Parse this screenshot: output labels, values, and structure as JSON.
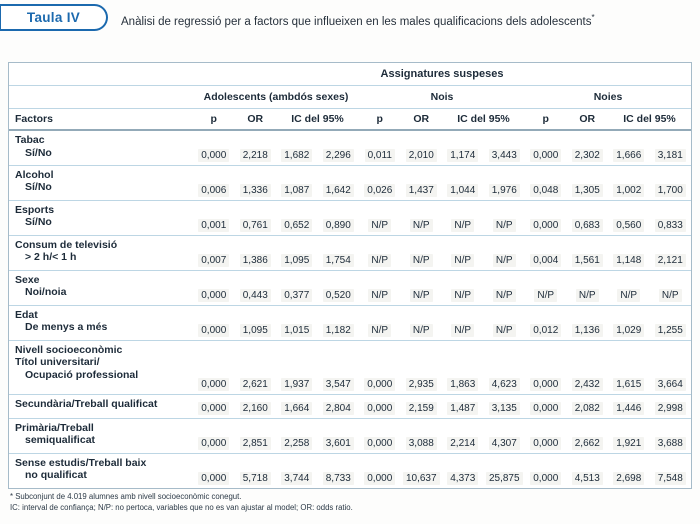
{
  "colors": {
    "accent_blue": "#1b69ae",
    "text_dark": "#1d2b39",
    "line_light": "#bdd6e4",
    "line_dark": "#93aab8",
    "table_border": "#a6bbc9"
  },
  "header": {
    "badge": "Taula IV",
    "title": "Anàlisi de regressió per a factors que influeixen en les males qualificacions dels adolescents",
    "title_asterisk": "*"
  },
  "table": {
    "span_header": "Assignatures suspeses",
    "groups": [
      "Adolescents (ambdós sexes)",
      "Nois",
      "Noies"
    ],
    "factors_header": "Factors",
    "col_headers": [
      "p",
      "OR",
      "IC del 95%"
    ],
    "rows": [
      {
        "lines": [
          "Tabac",
          "Sí/No"
        ],
        "indents": [
          0,
          1
        ],
        "values": [
          "0,000",
          "2,218",
          "1,682",
          "2,296",
          "0,011",
          "2,010",
          "1,174",
          "3,443",
          "0,000",
          "2,302",
          "1,666",
          "3,181"
        ]
      },
      {
        "lines": [
          "Alcohol",
          "Sí/No"
        ],
        "indents": [
          0,
          1
        ],
        "values": [
          "0,006",
          "1,336",
          "1,087",
          "1,642",
          "0,026",
          "1,437",
          "1,044",
          "1,976",
          "0,048",
          "1,305",
          "1,002",
          "1,700"
        ]
      },
      {
        "lines": [
          "Esports",
          "Sí/No"
        ],
        "indents": [
          0,
          1
        ],
        "values": [
          "0,001",
          "0,761",
          "0,652",
          "0,890",
          "N/P",
          "N/P",
          "N/P",
          "N/P",
          "0,000",
          "0,683",
          "0,560",
          "0,833"
        ]
      },
      {
        "lines": [
          "Consum de televisió",
          "> 2 h/< 1 h"
        ],
        "indents": [
          0,
          1
        ],
        "values": [
          "0,007",
          "1,386",
          "1,095",
          "1,754",
          "N/P",
          "N/P",
          "N/P",
          "N/P",
          "0,004",
          "1,561",
          "1,148",
          "2,121"
        ]
      },
      {
        "lines": [
          "Sexe",
          "Noi/noia"
        ],
        "indents": [
          0,
          1
        ],
        "values": [
          "0,000",
          "0,443",
          "0,377",
          "0,520",
          "N/P",
          "N/P",
          "N/P",
          "N/P",
          "N/P",
          "N/P",
          "N/P",
          "N/P"
        ]
      },
      {
        "lines": [
          "Edat",
          "De menys a més"
        ],
        "indents": [
          0,
          1
        ],
        "values": [
          "0,000",
          "1,095",
          "1,015",
          "1,182",
          "N/P",
          "N/P",
          "N/P",
          "N/P",
          "0,012",
          "1,136",
          "1,029",
          "1,255"
        ]
      },
      {
        "lines": [
          "Nivell socioeconòmic",
          "Títol universitari/",
          "Ocupació professional"
        ],
        "indents": [
          0,
          0,
          1
        ],
        "values": [
          "0,000",
          "2,621",
          "1,937",
          "3,547",
          "0,000",
          "2,935",
          "1,863",
          "4,623",
          "0,000",
          "2,432",
          "1,615",
          "3,664"
        ]
      },
      {
        "lines": [
          "Secundària/Treball qualificat"
        ],
        "indents": [
          0
        ],
        "values": [
          "0,000",
          "2,160",
          "1,664",
          "2,804",
          "0,000",
          "2,159",
          "1,487",
          "3,135",
          "0,000",
          "2,082",
          "1,446",
          "2,998"
        ]
      },
      {
        "lines": [
          "Primària/Treball",
          "semiqualificat"
        ],
        "indents": [
          0,
          1
        ],
        "values": [
          "0,000",
          "2,851",
          "2,258",
          "3,601",
          "0,000",
          "3,088",
          "2,214",
          "4,307",
          "0,000",
          "2,662",
          "1,921",
          "3,688"
        ]
      },
      {
        "lines": [
          "Sense estudis/Treball baix",
          "no qualificat"
        ],
        "indents": [
          0,
          1
        ],
        "values": [
          "0,000",
          "5,718",
          "3,744",
          "8,733",
          "0,000",
          "10,637",
          "4,373",
          "25,875",
          "0,000",
          "4,513",
          "2,698",
          "7,548"
        ]
      }
    ]
  },
  "footnotes": [
    "* Subconjunt de 4.019 alumnes amb nivell socioeconòmic conegut.",
    "IC: interval de confiança; N/P: no pertoca, variables que no es van ajustar al model; OR: odds ratio."
  ]
}
